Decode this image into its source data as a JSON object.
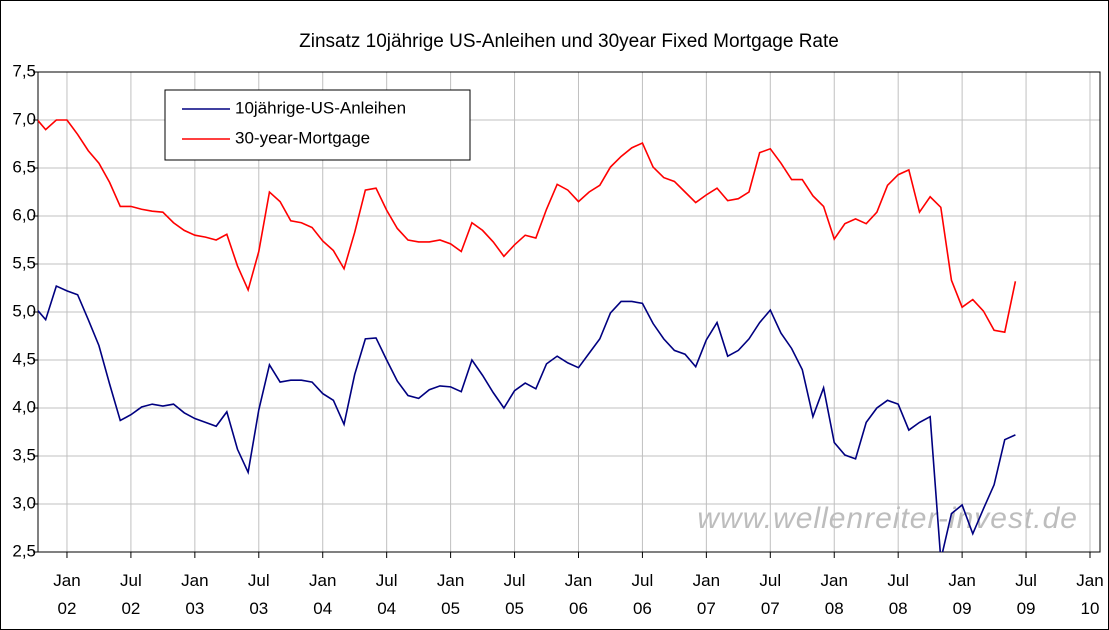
{
  "chart_data": {
    "type": "line",
    "title": "Zinsatz 10jährige US-Anleihen und 30year Fixed Mortgage Rate",
    "watermark": "www.wellenreiter-invest.de",
    "x": [
      "2001-10",
      "2001-11",
      "2001-12",
      "2002-01",
      "2002-02",
      "2002-03",
      "2002-04",
      "2002-05",
      "2002-06",
      "2002-07",
      "2002-08",
      "2002-09",
      "2002-10",
      "2002-11",
      "2002-12",
      "2003-01",
      "2003-02",
      "2003-03",
      "2003-04",
      "2003-05",
      "2003-06",
      "2003-07",
      "2003-08",
      "2003-09",
      "2003-10",
      "2003-11",
      "2003-12",
      "2004-01",
      "2004-02",
      "2004-03",
      "2004-04",
      "2004-05",
      "2004-06",
      "2004-07",
      "2004-08",
      "2004-09",
      "2004-10",
      "2004-11",
      "2004-12",
      "2005-01",
      "2005-02",
      "2005-03",
      "2005-04",
      "2005-05",
      "2005-06",
      "2005-07",
      "2005-08",
      "2005-09",
      "2005-10",
      "2005-11",
      "2005-12",
      "2006-01",
      "2006-02",
      "2006-03",
      "2006-04",
      "2006-05",
      "2006-06",
      "2006-07",
      "2006-08",
      "2006-09",
      "2006-10",
      "2006-11",
      "2006-12",
      "2007-01",
      "2007-02",
      "2007-03",
      "2007-04",
      "2007-05",
      "2007-06",
      "2007-07",
      "2007-08",
      "2007-09",
      "2007-10",
      "2007-11",
      "2007-12",
      "2008-01",
      "2008-02",
      "2008-03",
      "2008-04",
      "2008-05",
      "2008-06",
      "2008-07",
      "2008-08",
      "2008-09",
      "2008-10",
      "2008-11",
      "2008-12",
      "2009-01",
      "2009-02",
      "2009-03",
      "2009-04",
      "2009-05",
      "2009-06"
    ],
    "series": [
      {
        "name": "10jährige-US-Anleihen",
        "color": "#000080",
        "values": [
          5.05,
          4.92,
          5.27,
          5.22,
          5.18,
          4.92,
          4.65,
          4.25,
          3.87,
          3.93,
          4.01,
          4.04,
          4.02,
          4.04,
          3.95,
          3.89,
          3.85,
          3.81,
          3.96,
          3.57,
          3.33,
          3.98,
          4.45,
          4.27,
          4.29,
          4.29,
          4.27,
          4.15,
          4.08,
          3.83,
          4.35,
          4.72,
          4.73,
          4.5,
          4.28,
          4.13,
          4.1,
          4.19,
          4.23,
          4.22,
          4.17,
          4.5,
          4.34,
          4.16,
          4.0,
          4.18,
          4.26,
          4.2,
          4.46,
          4.54,
          4.47,
          4.42,
          4.57,
          4.72,
          4.99,
          5.11,
          5.11,
          5.09,
          4.88,
          4.72,
          4.6,
          4.56,
          4.43,
          4.71,
          4.89,
          4.54,
          4.6,
          4.72,
          4.89,
          5.02,
          4.78,
          4.62,
          4.4,
          3.91,
          4.21,
          3.64,
          3.51,
          3.47,
          3.85,
          4.0,
          4.08,
          4.04,
          3.77,
          3.85,
          3.91,
          2.42,
          2.9,
          2.99,
          2.69,
          2.95,
          3.2,
          3.67,
          3.72
        ]
      },
      {
        "name": "30-year-Mortgage",
        "color": "#ff0000",
        "values": [
          7.03,
          6.9,
          7.0,
          7.0,
          6.85,
          6.68,
          6.55,
          6.35,
          6.1,
          6.1,
          6.07,
          6.05,
          6.04,
          5.93,
          5.85,
          5.8,
          5.78,
          5.75,
          5.81,
          5.48,
          5.23,
          5.63,
          6.25,
          6.15,
          5.95,
          5.93,
          5.88,
          5.74,
          5.64,
          5.45,
          5.83,
          6.27,
          6.29,
          6.06,
          5.87,
          5.75,
          5.73,
          5.73,
          5.75,
          5.71,
          5.63,
          5.93,
          5.85,
          5.73,
          5.58,
          5.7,
          5.8,
          5.77,
          6.07,
          6.33,
          6.27,
          6.15,
          6.25,
          6.32,
          6.51,
          6.62,
          6.71,
          6.76,
          6.51,
          6.4,
          6.36,
          6.25,
          6.14,
          6.22,
          6.29,
          6.16,
          6.18,
          6.25,
          6.66,
          6.7,
          6.55,
          6.38,
          6.38,
          6.21,
          6.1,
          5.76,
          5.92,
          5.97,
          5.92,
          6.04,
          6.32,
          6.43,
          6.48,
          6.04,
          6.2,
          6.09,
          5.33,
          5.05,
          5.13,
          5.01,
          4.81,
          4.79,
          5.32
        ]
      }
    ],
    "xlim": [
      "2001-10",
      "2010-01"
    ],
    "xticks": [
      {
        "value": "2002-01",
        "label": "Jan 02"
      },
      {
        "value": "2002-07",
        "label": "Jul 02"
      },
      {
        "value": "2003-01",
        "label": "Jan 03"
      },
      {
        "value": "2003-07",
        "label": "Jul 03"
      },
      {
        "value": "2004-01",
        "label": "Jan 04"
      },
      {
        "value": "2004-07",
        "label": "Jul 04"
      },
      {
        "value": "2005-01",
        "label": "Jan 05"
      },
      {
        "value": "2005-07",
        "label": "Jul 05"
      },
      {
        "value": "2006-01",
        "label": "Jan 06"
      },
      {
        "value": "2006-07",
        "label": "Jul 06"
      },
      {
        "value": "2007-01",
        "label": "Jan 07"
      },
      {
        "value": "2007-07",
        "label": "Jul 07"
      },
      {
        "value": "2008-01",
        "label": "Jan 08"
      },
      {
        "value": "2008-07",
        "label": "Jul 08"
      },
      {
        "value": "2009-01",
        "label": "Jan 09"
      },
      {
        "value": "2009-07",
        "label": "Jul 09"
      },
      {
        "value": "2010-01",
        "label": "Jan 10"
      }
    ],
    "ylim": [
      2.5,
      7.5
    ],
    "yticks": [
      {
        "value": 2.5,
        "label": "2,5"
      },
      {
        "value": 3,
        "label": "3,0"
      },
      {
        "value": 3.5,
        "label": "3,5"
      },
      {
        "value": 4,
        "label": "4,0"
      },
      {
        "value": 4.5,
        "label": "4,5"
      },
      {
        "value": 5,
        "label": "5,0"
      },
      {
        "value": 5.5,
        "label": "5,5"
      },
      {
        "value": 6,
        "label": "6,0"
      },
      {
        "value": 6.5,
        "label": "6,5"
      },
      {
        "value": 7,
        "label": "7,0"
      },
      {
        "value": 7.5,
        "label": "7,5"
      }
    ],
    "grid": true,
    "legend": "upper-left"
  }
}
